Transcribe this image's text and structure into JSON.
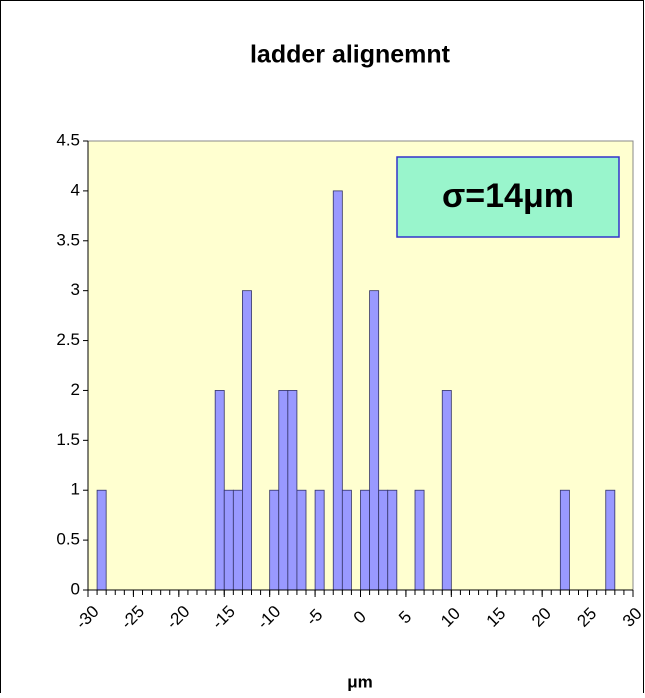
{
  "chart_data": {
    "type": "histogram",
    "title": "ladder alignemnt",
    "annotation": "σ=14μm",
    "x_label": "μm",
    "bins": [
      -30,
      -29,
      -28,
      -27,
      -26,
      -25,
      -24,
      -23,
      -22,
      -21,
      -20,
      -19,
      -18,
      -17,
      -16,
      -15,
      -14,
      -13,
      -12,
      -11,
      -10,
      -9,
      -8,
      -7,
      -6,
      -5,
      -4,
      -3,
      -2,
      -1,
      0,
      1,
      2,
      3,
      4,
      5,
      6,
      7,
      8,
      9,
      10,
      11,
      12,
      13,
      14,
      15,
      16,
      17,
      18,
      19,
      20,
      21,
      22,
      23,
      24,
      25,
      26,
      27,
      28,
      29,
      30
    ],
    "values": [
      0,
      1,
      0,
      0,
      0,
      0,
      0,
      0,
      0,
      0,
      0,
      0,
      0,
      0,
      2,
      1,
      1,
      3,
      0,
      0,
      1,
      2,
      2,
      1,
      0,
      1,
      0,
      4,
      1,
      0,
      1,
      3,
      1,
      1,
      0,
      0,
      1,
      0,
      0,
      2,
      0,
      0,
      0,
      0,
      0,
      0,
      0,
      0,
      0,
      0,
      0,
      0,
      1,
      0,
      0,
      0,
      0,
      1,
      0,
      0
    ],
    "color": "#9999ff",
    "xlim": [
      -30,
      30
    ],
    "xticks": [
      -30,
      -25,
      -20,
      -15,
      -10,
      -5,
      0,
      5,
      10,
      15,
      20,
      25,
      30
    ],
    "ylim": [
      0,
      4.5
    ],
    "yticks": [
      0,
      0.5,
      1,
      1.5,
      2,
      2.5,
      3,
      3.5,
      4,
      4.5
    ]
  }
}
